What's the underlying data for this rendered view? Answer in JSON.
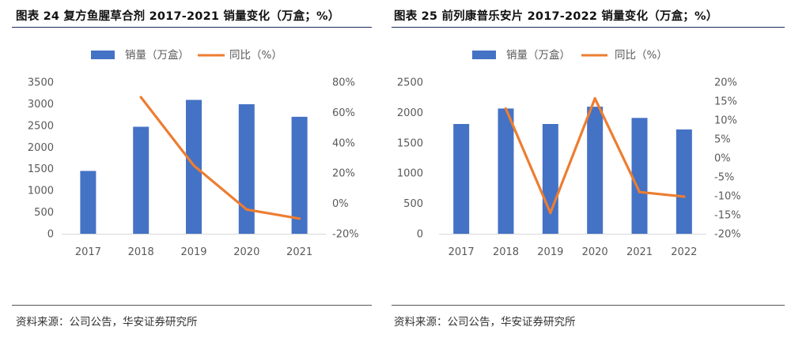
{
  "colors": {
    "bar": "#4472C4",
    "line": "#ED7D31",
    "axis": "#D9D9D9",
    "title_rule": "#1a2a5a"
  },
  "figures": [
    {
      "title": "图表 24 复方鱼腥草合剂 2017-2021 销量变化（万盒；%）",
      "source": "资料来源：公司公告，华安证券研究所"
    },
    {
      "title": "图表 25 前列康普乐安片 2017-2022 销量变化（万盒；%）",
      "source": "资料来源：公司公告，华安证券研究所"
    }
  ],
  "chart_data": [
    {
      "type": "bar+line",
      "categories": [
        "2017",
        "2018",
        "2019",
        "2020",
        "2021"
      ],
      "series": [
        {
          "name": "销量（万盒）",
          "kind": "bar",
          "axis": "left",
          "values": [
            1450,
            2470,
            3090,
            2990,
            2700
          ]
        },
        {
          "name": "同比（%）",
          "kind": "line",
          "axis": "right",
          "values": [
            null,
            70,
            25,
            -4,
            -10
          ]
        }
      ],
      "left_axis": {
        "min": 0,
        "max": 3500,
        "ticks": [
          0,
          500,
          1000,
          1500,
          2000,
          2500,
          3000,
          3500
        ],
        "tick_labels": [
          "0",
          "500",
          "1000",
          "1500",
          "2000",
          "2500",
          "3000",
          "3500"
        ]
      },
      "right_axis": {
        "min": -20,
        "max": 80,
        "ticks": [
          -20,
          0,
          20,
          40,
          60,
          80
        ],
        "tick_labels": [
          "-20%",
          "0%",
          "20%",
          "40%",
          "60%",
          "80%"
        ]
      },
      "legend_position": "top-center",
      "grid": false
    },
    {
      "type": "bar+line",
      "categories": [
        "2017",
        "2018",
        "2019",
        "2020",
        "2021",
        "2022"
      ],
      "series": [
        {
          "name": "销量（万盒）",
          "kind": "bar",
          "axis": "left",
          "values": [
            1810,
            2065,
            1810,
            2095,
            1910,
            1720
          ]
        },
        {
          "name": "同比（%）",
          "kind": "line",
          "axis": "right",
          "values": [
            null,
            13,
            -14.5,
            15.7,
            -9,
            -10.2
          ]
        }
      ],
      "left_axis": {
        "min": 0,
        "max": 2500,
        "ticks": [
          0,
          500,
          1000,
          1500,
          2000,
          2500
        ],
        "tick_labels": [
          "0",
          "500",
          "1000",
          "1500",
          "2000",
          "2500"
        ]
      },
      "right_axis": {
        "min": -20,
        "max": 20,
        "ticks": [
          -20,
          -15,
          -10,
          -5,
          0,
          5,
          10,
          15,
          20
        ],
        "tick_labels": [
          "-20%",
          "-15%",
          "-10%",
          "-5%",
          "0%",
          "5%",
          "10%",
          "15%",
          "20%"
        ]
      },
      "legend_position": "top-center",
      "grid": false
    }
  ]
}
